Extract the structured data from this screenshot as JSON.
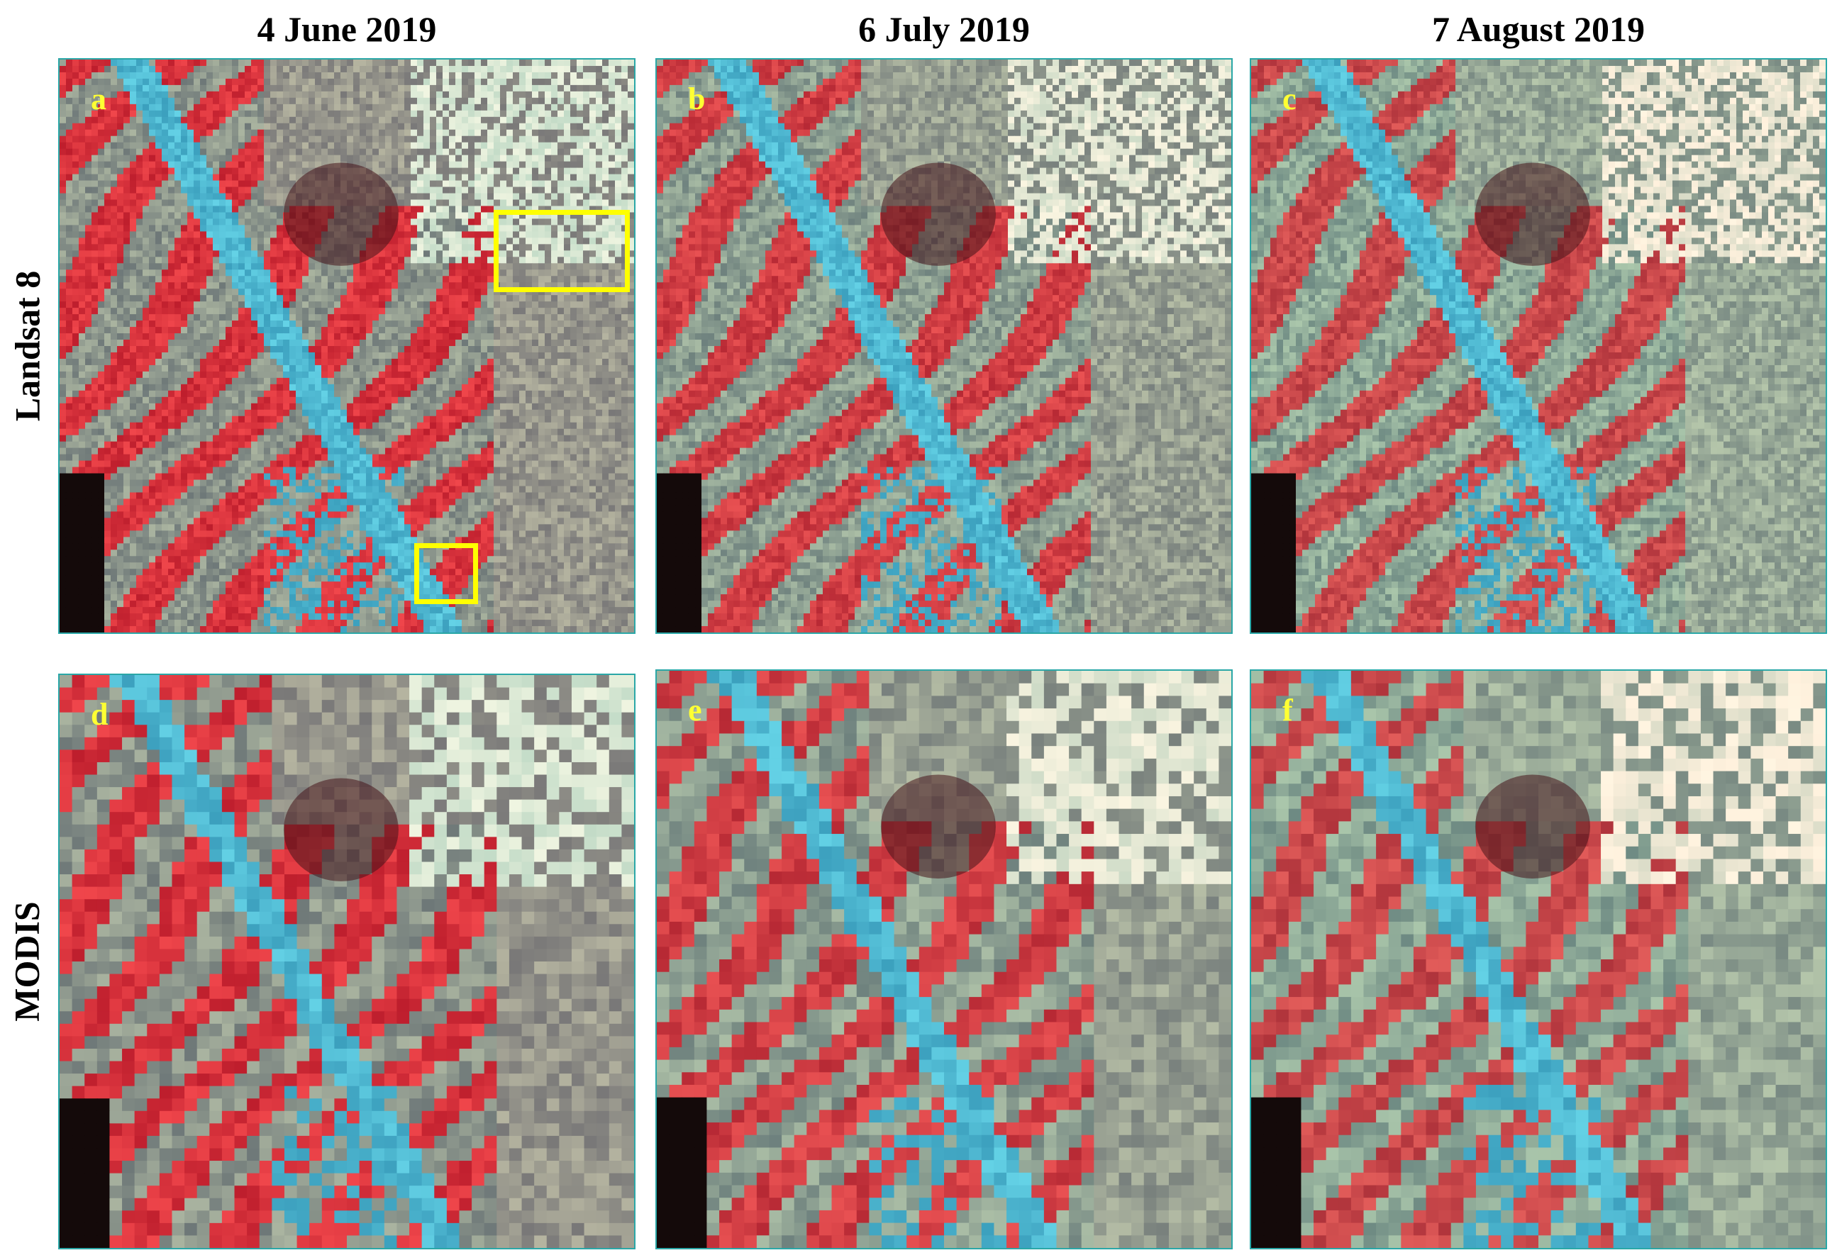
{
  "columns": [
    "4 June 2019",
    "6 July 2019",
    "7 August 2019"
  ],
  "rows": [
    "Landsat 8",
    "MODIS"
  ],
  "panels": [
    {
      "letter": "a",
      "row": "Landsat 8",
      "date": "4 June 2019",
      "style": "fine"
    },
    {
      "letter": "b",
      "row": "Landsat 8",
      "date": "6 July 2019",
      "style": "fine"
    },
    {
      "letter": "c",
      "row": "Landsat 8",
      "date": "7 August 2019",
      "style": "fine"
    },
    {
      "letter": "d",
      "row": "MODIS",
      "date": "4 June 2019",
      "style": "coarse"
    },
    {
      "letter": "e",
      "row": "MODIS",
      "date": "6 July 2019",
      "style": "coarse"
    },
    {
      "letter": "f",
      "row": "MODIS",
      "date": "7 August 2019",
      "style": "coarse"
    }
  ],
  "colors": {
    "vegetation": "#c81e2a",
    "urban": "#2ec4d6",
    "bare": "#7fb3a0",
    "highlight_box": "#ffff00",
    "panel_letter": "#ffff33",
    "panel_border": "#2aa7a7"
  }
}
